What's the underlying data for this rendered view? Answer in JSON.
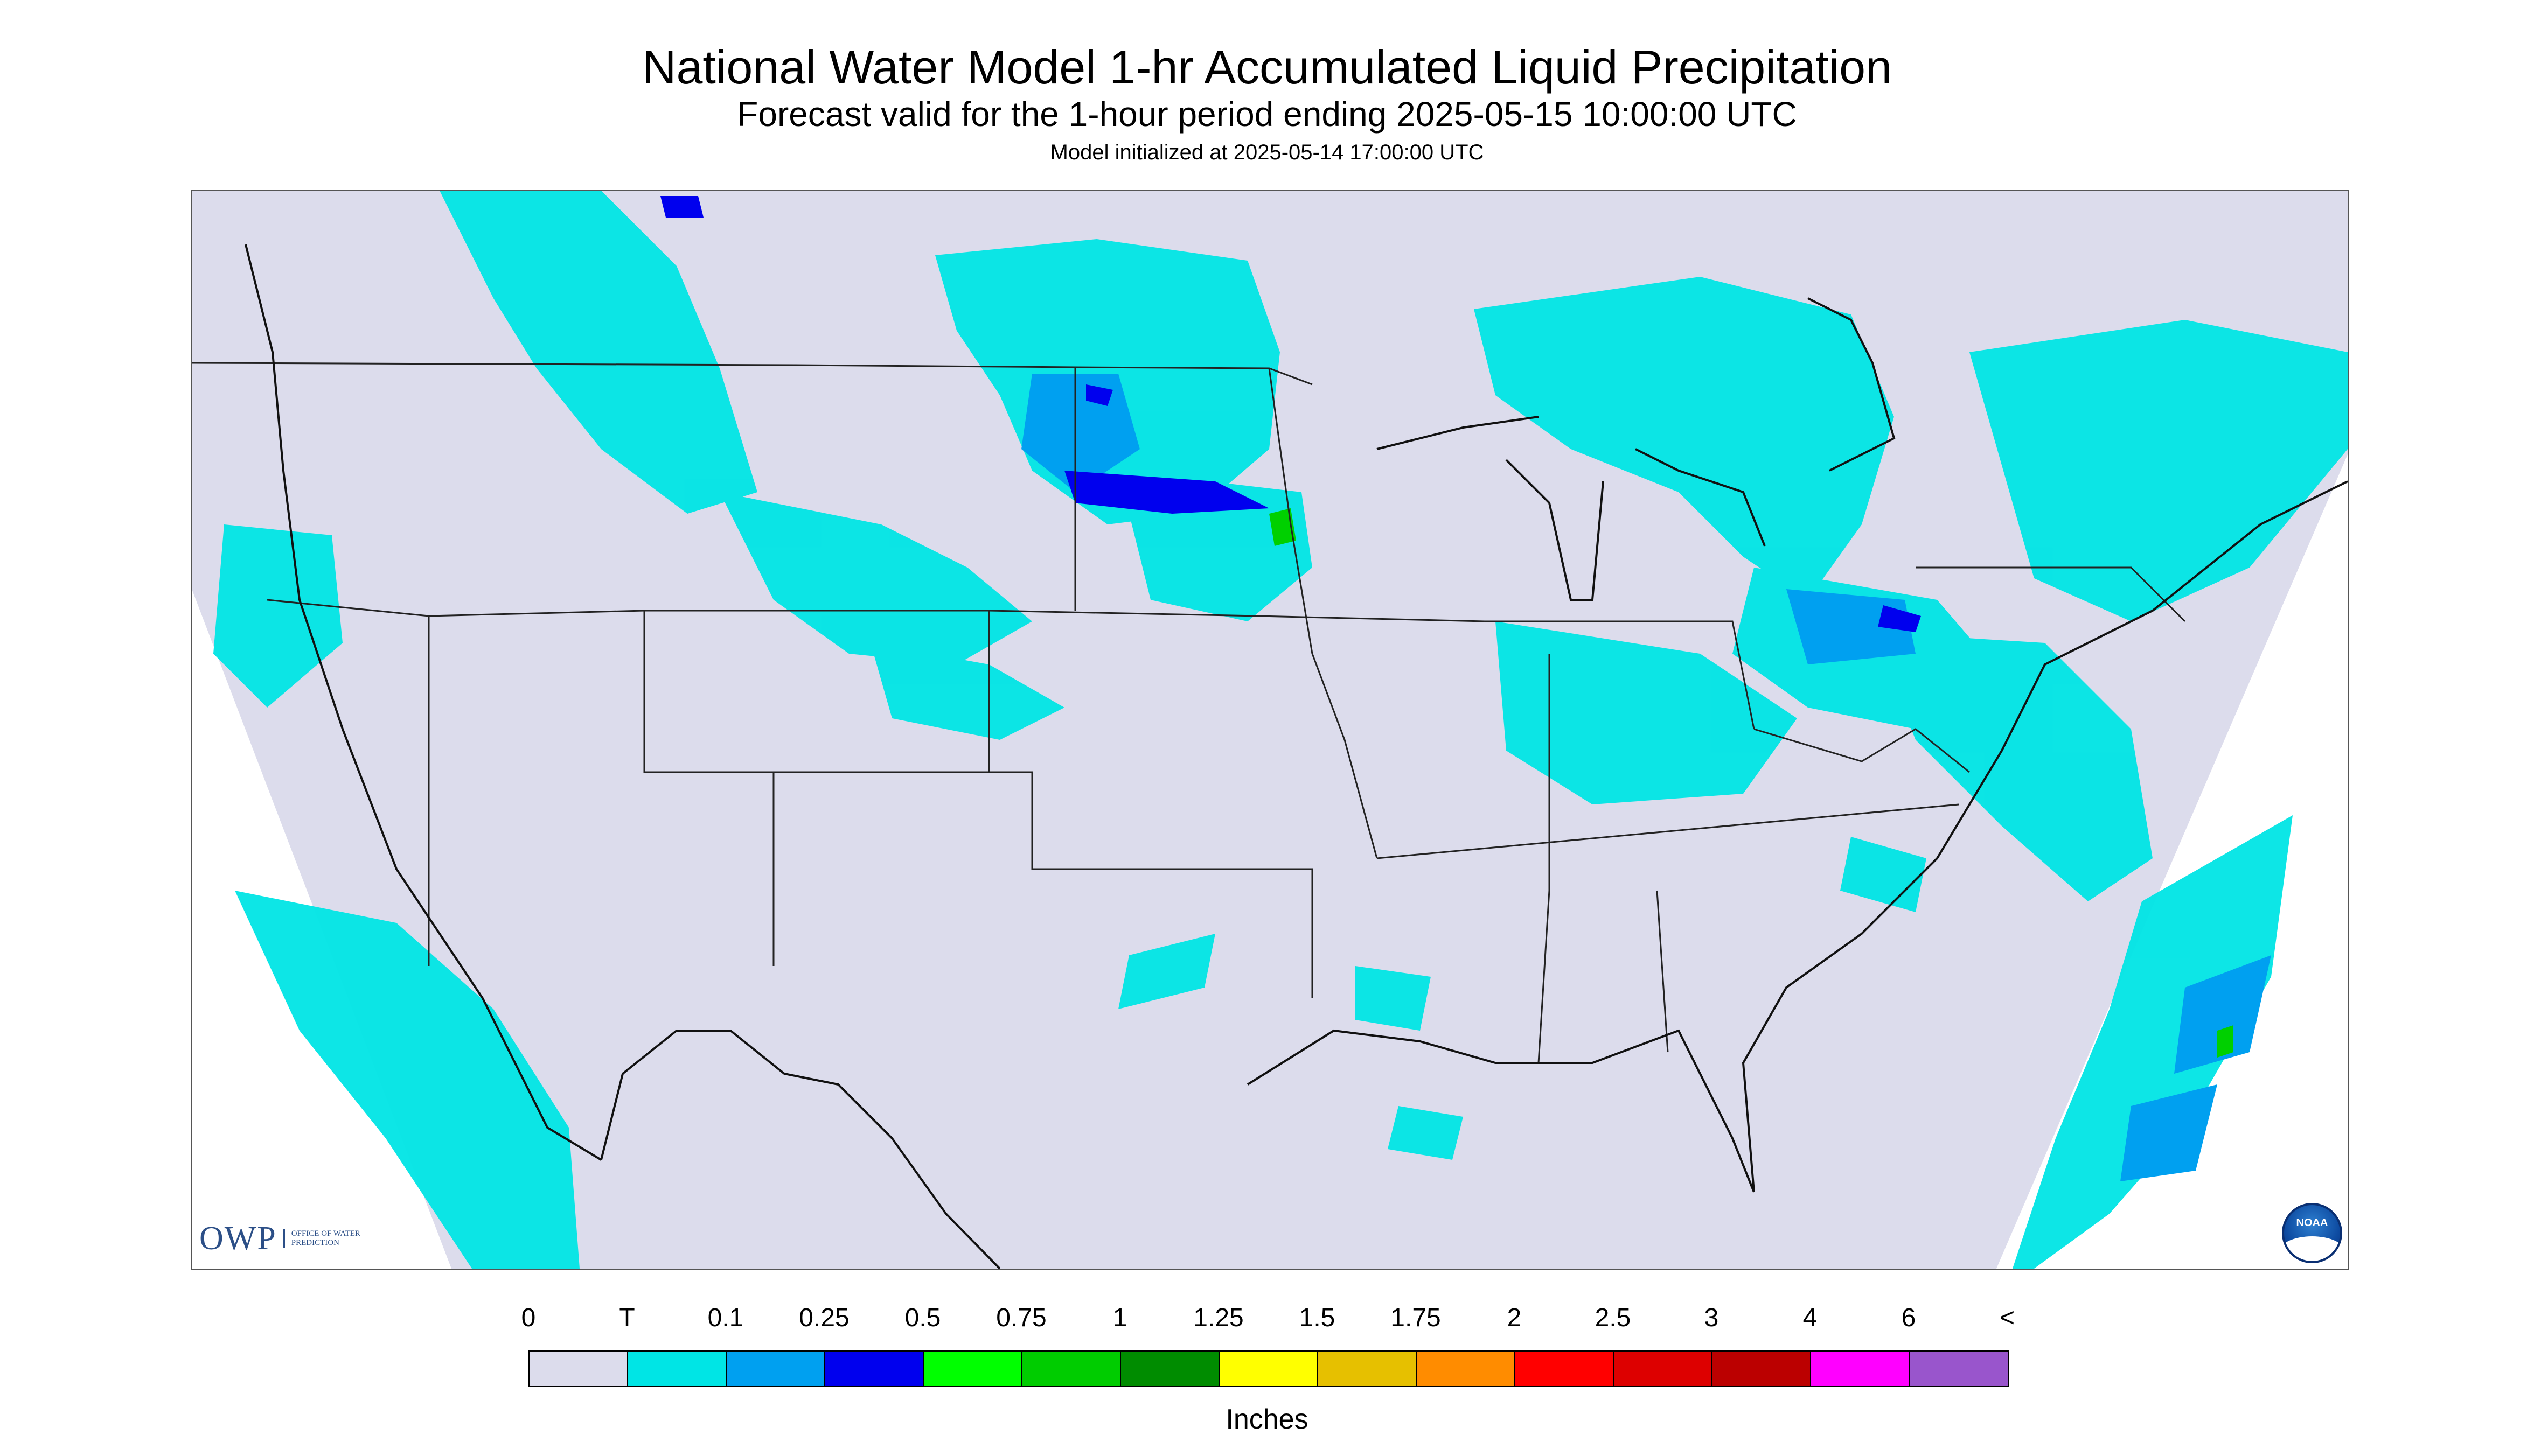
{
  "title": "National Water Model 1-hr Accumulated Liquid Precipitation",
  "subtitle": "Forecast valid for the 1-hour period ending 2025-05-15 10:00:00 UTC",
  "init_text": "Model initialized at 2025-05-14 17:00:00 UTC",
  "map": {
    "background_color": "#dcdcec",
    "outside_color": "#ffffff",
    "boundary_color": "#222222",
    "precip_colors": {
      "trace": "#00e5e5",
      "light": "#00a0f0",
      "moderate": "#0000ee",
      "heavy": "#00d000"
    }
  },
  "logos": {
    "owp": "OWP",
    "owp_sub": "Office of Water Prediction",
    "noaa": "NOAA"
  },
  "legend": {
    "labels": [
      "0",
      "T",
      "0.1",
      "0.25",
      "0.5",
      "0.75",
      "1",
      "1.25",
      "1.5",
      "1.75",
      "2",
      "2.5",
      "3",
      "4",
      "6",
      "<"
    ],
    "colors": [
      "#dcdcec",
      "#00e5e5",
      "#00a0f0",
      "#0000ee",
      "#00ff00",
      "#00cc00",
      "#008c00",
      "#ffff00",
      "#e6c000",
      "#ff8c00",
      "#ff0000",
      "#dd0000",
      "#bb0000",
      "#ff00ff",
      "#9955cc"
    ],
    "units": "Inches"
  }
}
